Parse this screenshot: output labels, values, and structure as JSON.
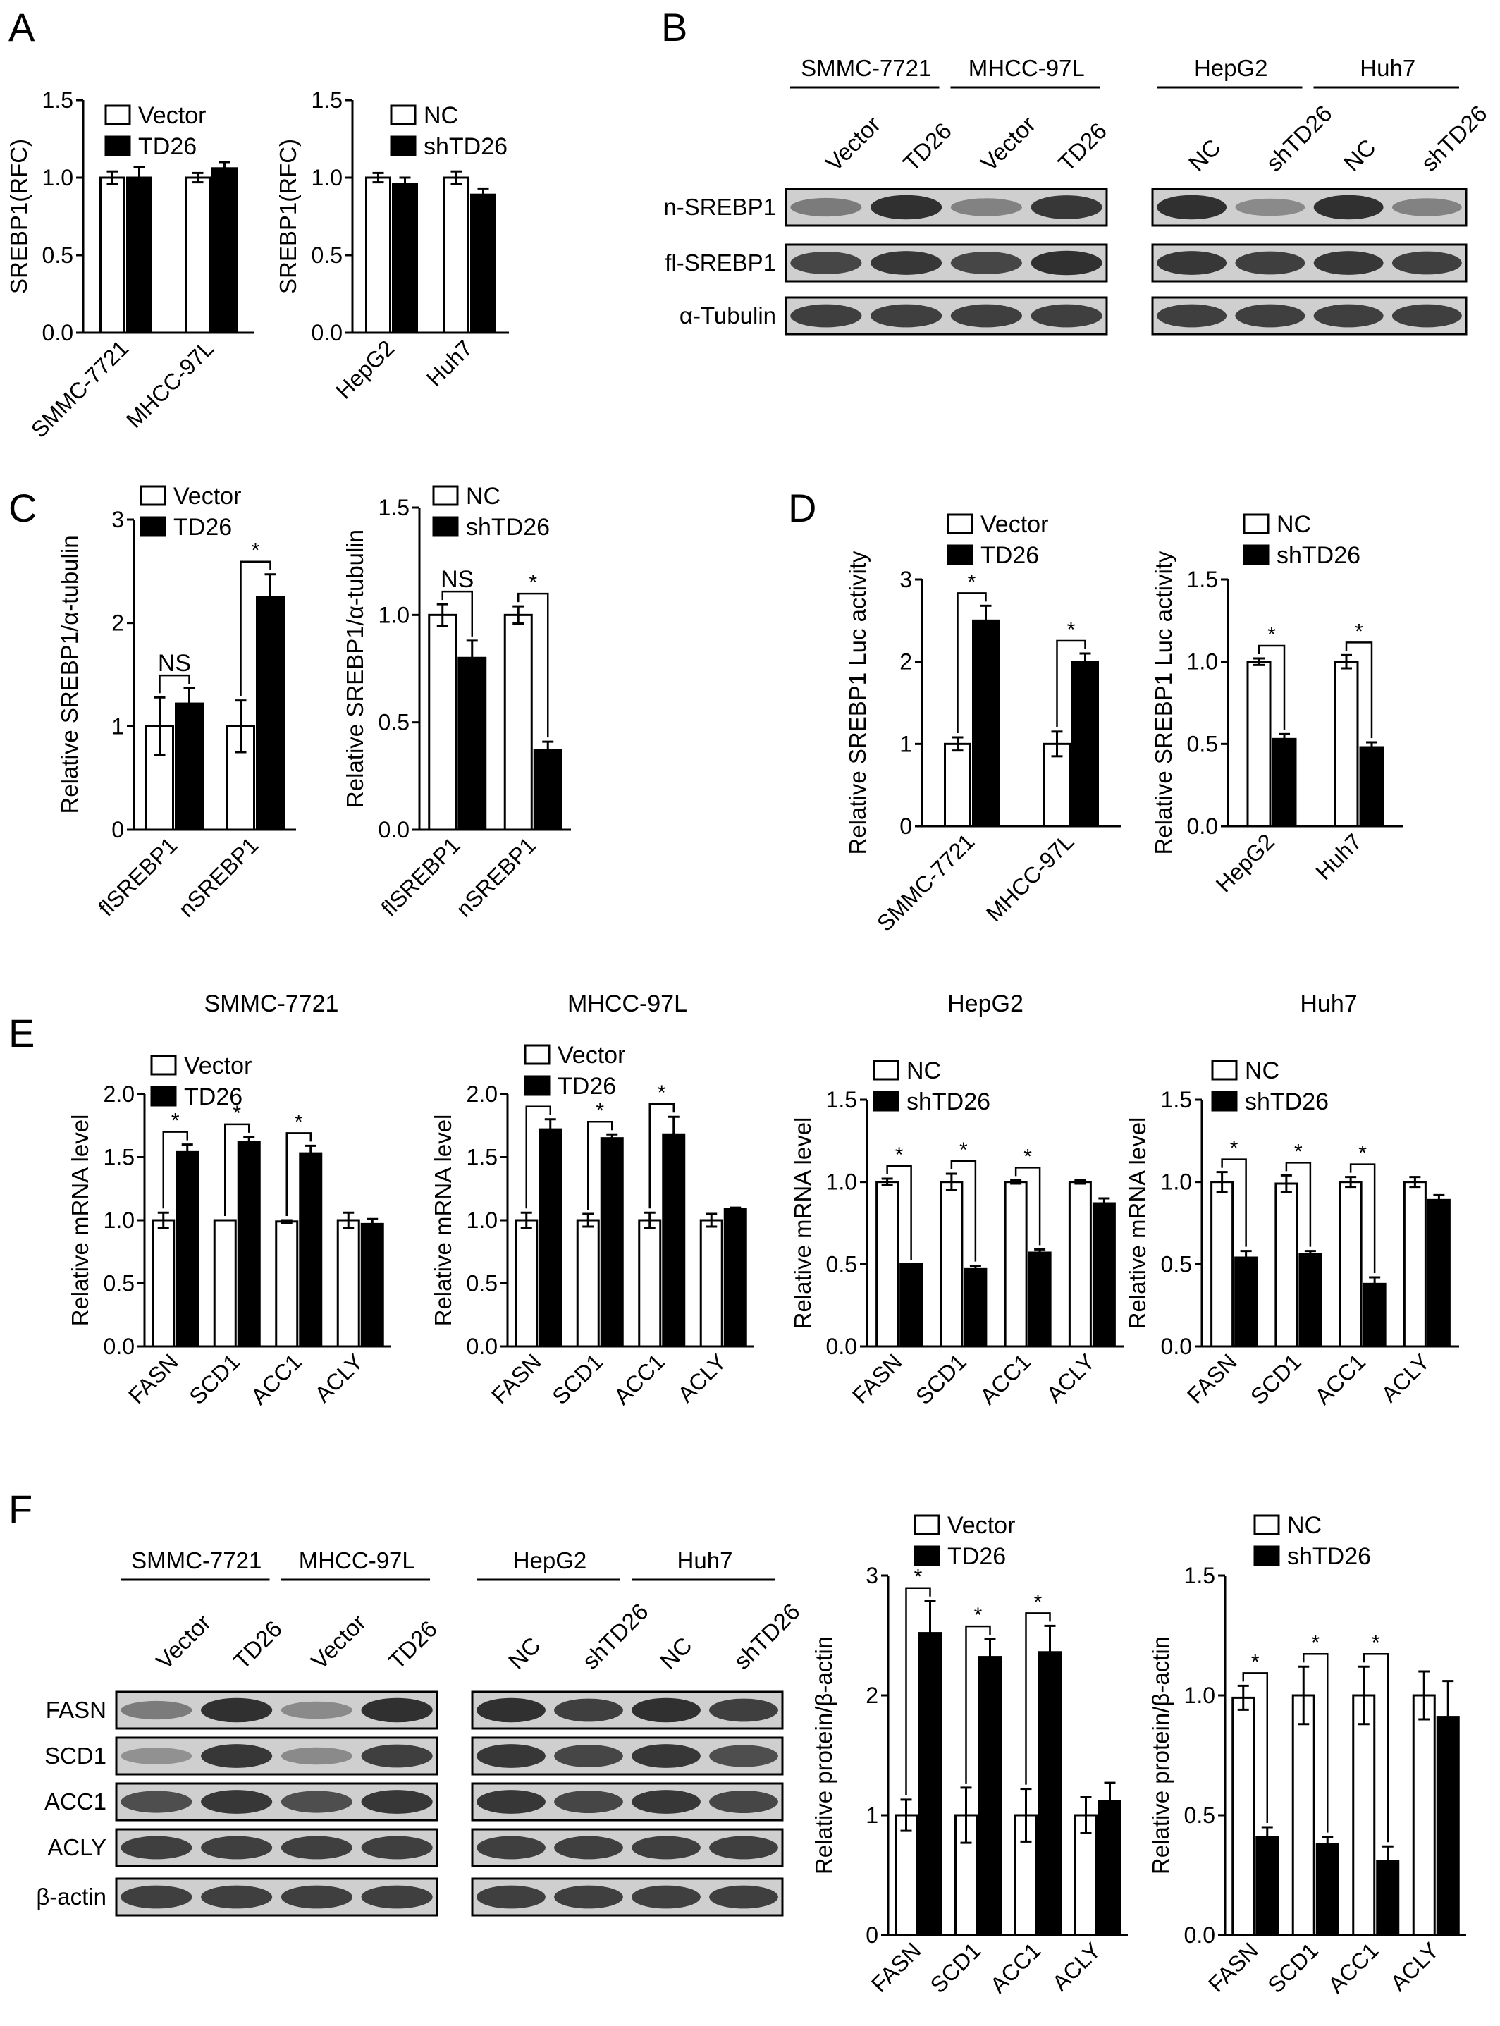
{
  "figure": {
    "panel_labels": [
      "A",
      "B",
      "C",
      "D",
      "E",
      "F"
    ],
    "colors": {
      "vector": "#ffffff",
      "treated": "#000000",
      "axis": "#000000",
      "blot_bg": "#cfcfcf",
      "band": "#1c1c1c"
    }
  },
  "chart_data": [
    {
      "id": "A1",
      "type": "bar",
      "ylabel": "SREBP1(RFC)",
      "ylim": [
        0,
        1.5
      ],
      "yticks": [
        "0.0",
        "0.5",
        "1.0",
        "1.5"
      ],
      "categories": [
        "SMMC-7721",
        "MHCC-97L"
      ],
      "series": [
        {
          "name": "Vector",
          "values": [
            1.0,
            1.0
          ],
          "errors": [
            0.04,
            0.03
          ]
        },
        {
          "name": "TD26",
          "values": [
            1.0,
            1.06
          ],
          "errors": [
            0.07,
            0.04
          ]
        }
      ],
      "sig": []
    },
    {
      "id": "A2",
      "type": "bar",
      "ylabel": "SREBP1(RFC)",
      "ylim": [
        0,
        1.5
      ],
      "yticks": [
        "0.0",
        "0.5",
        "1.0",
        "1.5"
      ],
      "categories": [
        "HepG2",
        "Huh7"
      ],
      "series": [
        {
          "name": "NC",
          "values": [
            1.0,
            1.0
          ],
          "errors": [
            0.03,
            0.04
          ]
        },
        {
          "name": "shTD26",
          "values": [
            0.96,
            0.89
          ],
          "errors": [
            0.04,
            0.04
          ]
        }
      ],
      "sig": []
    },
    {
      "id": "C1",
      "type": "bar",
      "ylabel": "Relative SREBP1/α-tubulin",
      "ylim": [
        0,
        3
      ],
      "yticks": [
        "0",
        "1",
        "2",
        "3"
      ],
      "categories": [
        "flSREBP1",
        "nSREBP1"
      ],
      "series": [
        {
          "name": "Vector",
          "values": [
            1.0,
            1.0
          ],
          "errors": [
            0.28,
            0.25
          ]
        },
        {
          "name": "TD26",
          "values": [
            1.22,
            2.25
          ],
          "errors": [
            0.15,
            0.22
          ]
        }
      ],
      "sig": [
        "NS",
        "*"
      ]
    },
    {
      "id": "C2",
      "type": "bar",
      "ylabel": "Relative SREBP1/α-tubulin",
      "ylim": [
        0,
        1.5
      ],
      "yticks": [
        "0.0",
        "0.5",
        "1.0",
        "1.5"
      ],
      "categories": [
        "flSREBP1",
        "nSREBP1"
      ],
      "series": [
        {
          "name": "NC",
          "values": [
            1.0,
            1.0
          ],
          "errors": [
            0.05,
            0.04
          ]
        },
        {
          "name": "shTD26",
          "values": [
            0.8,
            0.37
          ],
          "errors": [
            0.08,
            0.04
          ]
        }
      ],
      "sig": [
        "NS",
        "*"
      ]
    },
    {
      "id": "D1",
      "type": "bar",
      "ylabel": "Relative SREBP1 Luc activity",
      "ylim": [
        0,
        3
      ],
      "yticks": [
        "0",
        "1",
        "2",
        "3"
      ],
      "categories": [
        "SMMC-7721",
        "MHCC-97L"
      ],
      "series": [
        {
          "name": "Vector",
          "values": [
            1.0,
            1.0
          ],
          "errors": [
            0.08,
            0.15
          ]
        },
        {
          "name": "TD26",
          "values": [
            2.5,
            2.0
          ],
          "errors": [
            0.18,
            0.1
          ]
        }
      ],
      "sig": [
        "*",
        "*"
      ]
    },
    {
      "id": "D2",
      "type": "bar",
      "ylabel": "Relative SREBP1 Luc activity",
      "ylim": [
        0,
        1.5
      ],
      "yticks": [
        "0.0",
        "0.5",
        "1.0",
        "1.5"
      ],
      "categories": [
        "HepG2",
        "Huh7"
      ],
      "series": [
        {
          "name": "NC",
          "values": [
            1.0,
            1.0
          ],
          "errors": [
            0.02,
            0.04
          ]
        },
        {
          "name": "shTD26",
          "values": [
            0.53,
            0.48
          ],
          "errors": [
            0.03,
            0.03
          ]
        }
      ],
      "sig": [
        "*",
        "*"
      ]
    },
    {
      "id": "E1",
      "type": "bar",
      "title": "SMMC-7721",
      "ylabel": "Relative mRNA level",
      "ylim": [
        0,
        2
      ],
      "yticks": [
        "0.0",
        "0.5",
        "1.0",
        "1.5",
        "2.0"
      ],
      "categories": [
        "FASN",
        "SCD1",
        "ACC1",
        "ACLY"
      ],
      "series": [
        {
          "name": "Vector",
          "values": [
            1.0,
            1.0,
            0.99,
            1.0
          ],
          "errors": [
            0.06,
            0.0,
            0.01,
            0.06
          ]
        },
        {
          "name": "TD26",
          "values": [
            1.54,
            1.62,
            1.53,
            0.97
          ],
          "errors": [
            0.06,
            0.04,
            0.06,
            0.04
          ]
        }
      ],
      "sig": [
        "*",
        "*",
        "*",
        ""
      ]
    },
    {
      "id": "E2",
      "type": "bar",
      "title": "MHCC-97L",
      "ylabel": "Relative mRNA level",
      "ylim": [
        0,
        2
      ],
      "yticks": [
        "0.0",
        "0.5",
        "1.0",
        "1.5",
        "2.0"
      ],
      "categories": [
        "FASN",
        "SCD1",
        "ACC1",
        "ACLY"
      ],
      "series": [
        {
          "name": "Vector",
          "values": [
            1.0,
            1.0,
            1.0,
            1.0
          ],
          "errors": [
            0.06,
            0.05,
            0.06,
            0.05
          ]
        },
        {
          "name": "TD26",
          "values": [
            1.72,
            1.65,
            1.68,
            1.09
          ],
          "errors": [
            0.08,
            0.03,
            0.14,
            0.01
          ]
        }
      ],
      "sig": [
        "*",
        "*",
        "*",
        ""
      ]
    },
    {
      "id": "E3",
      "type": "bar",
      "title": "HepG2",
      "ylabel": "Relative mRNA level",
      "ylim": [
        0,
        1.5
      ],
      "yticks": [
        "0.0",
        "0.5",
        "1.0",
        "1.5"
      ],
      "categories": [
        "FASN",
        "SCD1",
        "ACC1",
        "ACLY"
      ],
      "series": [
        {
          "name": "NC",
          "values": [
            1.0,
            1.0,
            1.0,
            1.0
          ],
          "errors": [
            0.02,
            0.05,
            0.01,
            0.01
          ]
        },
        {
          "name": "shTD26",
          "values": [
            0.5,
            0.47,
            0.57,
            0.87
          ],
          "errors": [
            0.0,
            0.02,
            0.02,
            0.03
          ]
        }
      ],
      "sig": [
        "*",
        "*",
        "*",
        ""
      ]
    },
    {
      "id": "E4",
      "type": "bar",
      "title": "Huh7",
      "ylabel": "Relative mRNA level",
      "ylim": [
        0,
        1.5
      ],
      "yticks": [
        "0.0",
        "0.5",
        "1.0",
        "1.5"
      ],
      "categories": [
        "FASN",
        "SCD1",
        "ACC1",
        "ACLY"
      ],
      "series": [
        {
          "name": "NC",
          "values": [
            1.0,
            0.99,
            1.0,
            1.0
          ],
          "errors": [
            0.06,
            0.05,
            0.03,
            0.03
          ]
        },
        {
          "name": "shTD26",
          "values": [
            0.54,
            0.56,
            0.38,
            0.89
          ],
          "errors": [
            0.04,
            0.02,
            0.04,
            0.03
          ]
        }
      ],
      "sig": [
        "*",
        "*",
        "*",
        ""
      ]
    },
    {
      "id": "F1",
      "type": "bar",
      "ylabel": "Relative protein/β-actin",
      "ylim": [
        0,
        3
      ],
      "yticks": [
        "0",
        "1",
        "2",
        "3"
      ],
      "categories": [
        "FASN",
        "SCD1",
        "ACC1",
        "ACLY"
      ],
      "series": [
        {
          "name": "Vector",
          "values": [
            1.0,
            1.0,
            1.0,
            1.0
          ],
          "errors": [
            0.13,
            0.23,
            0.22,
            0.15
          ]
        },
        {
          "name": "TD26",
          "values": [
            2.52,
            2.32,
            2.36,
            1.12
          ],
          "errors": [
            0.27,
            0.15,
            0.22,
            0.15
          ]
        }
      ],
      "sig": [
        "*",
        "*",
        "*",
        ""
      ]
    },
    {
      "id": "F2",
      "type": "bar",
      "ylabel": "Relative protein/β-actin",
      "ylim": [
        0,
        1.5
      ],
      "yticks": [
        "0.0",
        "0.5",
        "1.0",
        "1.5"
      ],
      "categories": [
        "FASN",
        "SCD1",
        "ACC1",
        "ACLY"
      ],
      "series": [
        {
          "name": "NC",
          "values": [
            0.99,
            1.0,
            1.0,
            1.0
          ],
          "errors": [
            0.05,
            0.12,
            0.12,
            0.1
          ]
        },
        {
          "name": "shTD26",
          "values": [
            0.41,
            0.38,
            0.31,
            0.91
          ],
          "errors": [
            0.04,
            0.03,
            0.06,
            0.15
          ]
        }
      ],
      "sig": [
        "*",
        "*",
        "*",
        ""
      ]
    }
  ],
  "blots": {
    "B_left": {
      "groups": [
        "SMMC-7721",
        "MHCC-97L"
      ],
      "lanes": [
        "Vector",
        "TD26",
        "Vector",
        "TD26"
      ],
      "rows": [
        "n-SREBP1",
        "fl-SREBP1",
        "α-Tubulin"
      ],
      "intensity": [
        [
          0.45,
          0.95,
          0.4,
          0.9
        ],
        [
          0.8,
          0.9,
          0.8,
          0.95
        ],
        [
          0.85,
          0.85,
          0.85,
          0.85
        ]
      ]
    },
    "B_right": {
      "groups": [
        "HepG2",
        "Huh7"
      ],
      "lanes": [
        "NC",
        "shTD26",
        "NC",
        "shTD26"
      ],
      "intensity": [
        [
          0.95,
          0.35,
          0.95,
          0.4
        ],
        [
          0.9,
          0.85,
          0.9,
          0.85
        ],
        [
          0.85,
          0.85,
          0.85,
          0.85
        ]
      ]
    },
    "F_left": {
      "groups": [
        "SMMC-7721",
        "MHCC-97L"
      ],
      "lanes": [
        "Vector",
        "TD26",
        "Vector",
        "TD26"
      ],
      "rows": [
        "FASN",
        "SCD1",
        "ACC1",
        "ACLY",
        "β-actin"
      ],
      "intensity": [
        [
          0.45,
          0.95,
          0.35,
          0.95
        ],
        [
          0.3,
          0.9,
          0.35,
          0.85
        ],
        [
          0.75,
          0.9,
          0.75,
          0.9
        ],
        [
          0.85,
          0.85,
          0.85,
          0.85
        ],
        [
          0.85,
          0.85,
          0.85,
          0.85
        ]
      ]
    },
    "F_right": {
      "groups": [
        "HepG2",
        "Huh7"
      ],
      "lanes": [
        "NC",
        "shTD26",
        "NC",
        "shTD26"
      ],
      "intensity": [
        [
          0.95,
          0.85,
          0.95,
          0.85
        ],
        [
          0.9,
          0.8,
          0.9,
          0.75
        ],
        [
          0.9,
          0.8,
          0.9,
          0.8
        ],
        [
          0.85,
          0.85,
          0.85,
          0.85
        ],
        [
          0.85,
          0.85,
          0.85,
          0.85
        ]
      ]
    }
  }
}
